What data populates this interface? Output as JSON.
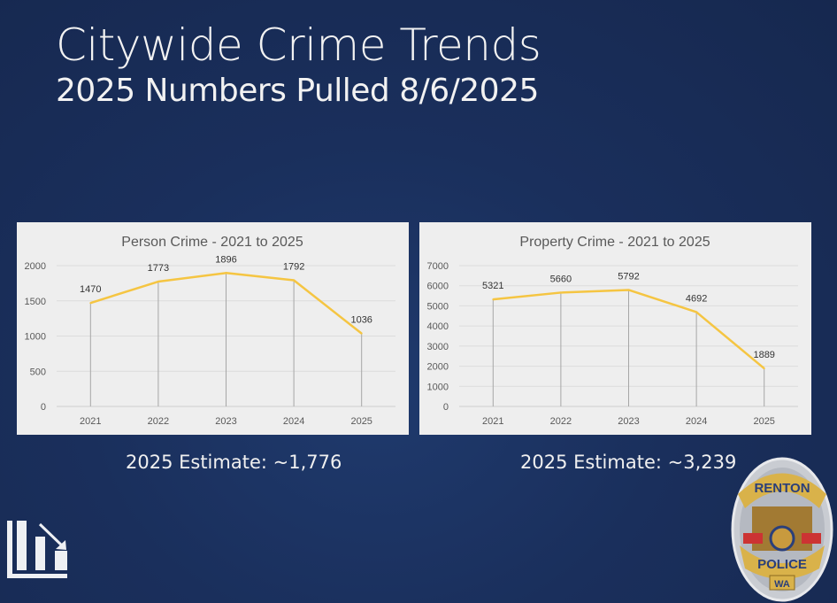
{
  "header": {
    "title": "Citywide Crime Trends",
    "subtitle": "2025 Numbers Pulled 8/6/2025"
  },
  "chart_data": [
    {
      "type": "line",
      "title": "Person Crime - 2021 to 2025",
      "categories": [
        "2021",
        "2022",
        "2023",
        "2024",
        "2025"
      ],
      "values": [
        1470,
        1773,
        1896,
        1792,
        1036
      ],
      "ylim": [
        0,
        2000
      ],
      "yticks": [
        0,
        500,
        1000,
        1500,
        2000
      ],
      "data_labels": true,
      "drop_lines": true,
      "grid": true,
      "line_color": "#f5c542"
    },
    {
      "type": "line",
      "title": "Property Crime - 2021 to 2025",
      "categories": [
        "2021",
        "2022",
        "2023",
        "2024",
        "2025"
      ],
      "values": [
        5321,
        5660,
        5792,
        4692,
        1889
      ],
      "ylim": [
        0,
        7000
      ],
      "yticks": [
        0,
        1000,
        2000,
        3000,
        4000,
        5000,
        6000,
        7000
      ],
      "data_labels": true,
      "drop_lines": true,
      "grid": true,
      "line_color": "#f5c542"
    }
  ],
  "estimates": {
    "person": "2025 Estimate: ~1,776",
    "property": "2025 Estimate: ~3,239"
  },
  "icons": {
    "trend": "bar-chart-decrease-icon"
  },
  "badge": {
    "top": "RENTON",
    "middle": "POLICE",
    "bottom": "WA"
  }
}
